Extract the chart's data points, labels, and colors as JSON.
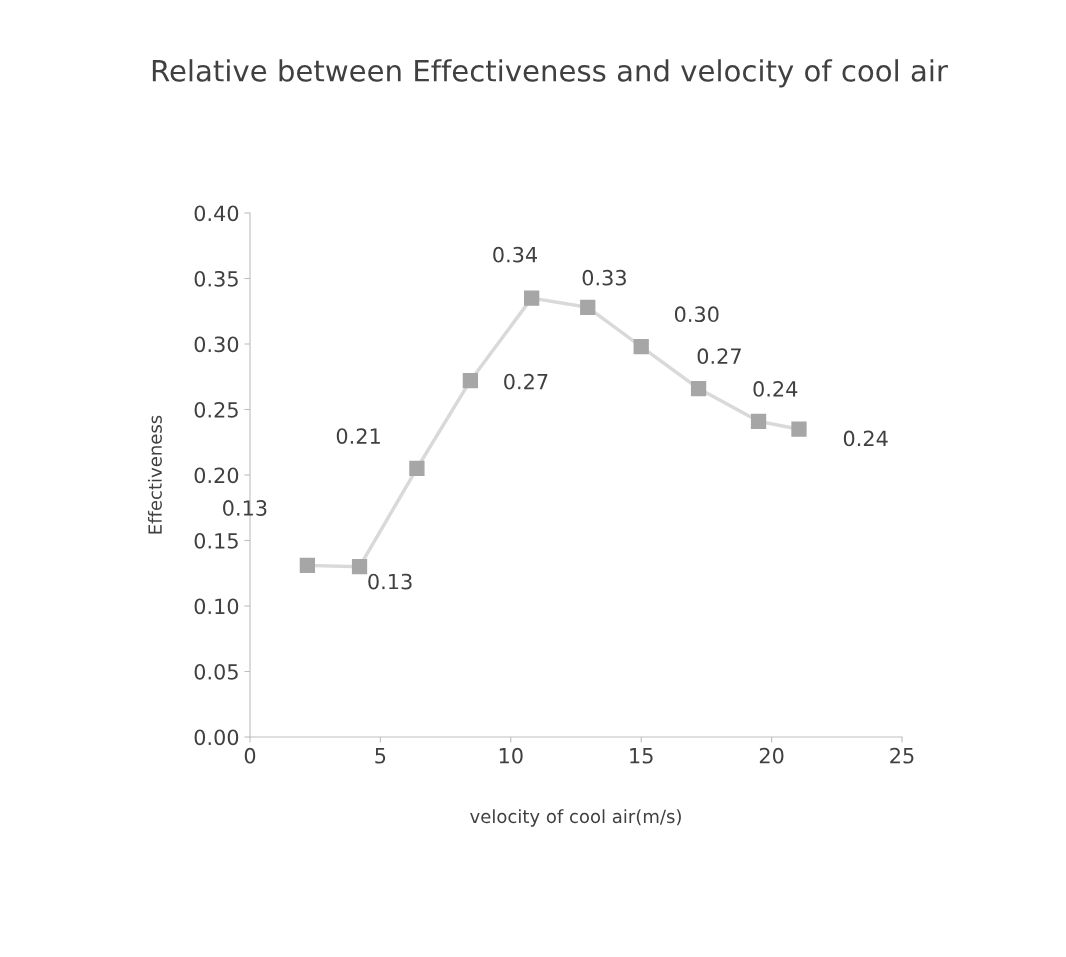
{
  "chart_data": {
    "type": "line",
    "title": "Relative between Effectiveness and velocity of cool air",
    "xlabel": "velocity of cool air(m/s)",
    "ylabel": "Effectiveness",
    "x": [
      2.2,
      4.2,
      6.4,
      8.45,
      10.8,
      12.95,
      15.0,
      17.2,
      19.5,
      21.05
    ],
    "series": [
      {
        "color": "#a6a6a6",
        "values": [
          0.131,
          0.13,
          0.205,
          0.272,
          0.335,
          0.328,
          0.298,
          0.266,
          0.241,
          0.235
        ],
        "value_labels": [
          "0.13",
          "0.13",
          "0.21",
          "0.27",
          "0.34",
          "0.33",
          "0.30",
          "0.27",
          "0.24",
          "0.24"
        ]
      }
    ],
    "xlim": [
      0,
      25
    ],
    "xticks": [
      0,
      5,
      10,
      15,
      20,
      25
    ],
    "ylim": [
      0,
      0.4
    ],
    "yticks": [
      {
        "value": 0,
        "label": "0.00"
      },
      {
        "value": 0.05,
        "label": "0.05"
      },
      {
        "value": 0.1,
        "label": "0.10"
      },
      {
        "value": 0.15,
        "label": "0.15"
      },
      {
        "value": 0.2,
        "label": "0.20"
      },
      {
        "value": 0.25,
        "label": "0.25"
      },
      {
        "value": 0.3,
        "label": "0.30"
      },
      {
        "value": 0.35,
        "label": "0.35"
      },
      {
        "value": 0.4,
        "label": "0.40"
      }
    ],
    "grid": false,
    "legend": false,
    "marker": "square",
    "line_style": "solid"
  }
}
